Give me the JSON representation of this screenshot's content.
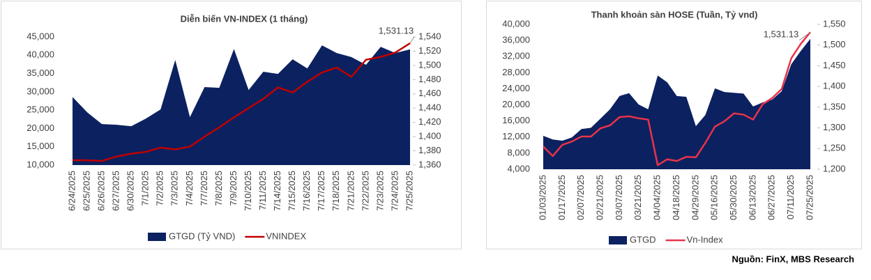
{
  "chart_data": [
    {
      "type": "combo",
      "title": "Diễn biến VN-INDEX (1 tháng)",
      "categories": [
        "6/24/2025",
        "6/25/2025",
        "6/26/2025",
        "6/27/2025",
        "6/30/2025",
        "7/1/2025",
        "7/2/2025",
        "7/3/2025",
        "7/4/2025",
        "7/7/2025",
        "7/8/2025",
        "7/9/2025",
        "7/10/2025",
        "7/11/2025",
        "7/14/2025",
        "7/15/2025",
        "7/16/2025",
        "7/17/2025",
        "7/18/2025",
        "7/21/2025",
        "7/22/2025",
        "7/23/2025",
        "7/24/2025",
        "7/25/2025"
      ],
      "series": [
        {
          "name": "GTGD (Tỷ VND)",
          "type": "area",
          "color": "#0c2160",
          "values": [
            28600,
            24400,
            21200,
            21000,
            20600,
            22700,
            25200,
            38700,
            23100,
            31300,
            31100,
            41700,
            30500,
            35500,
            34900,
            38900,
            36400,
            42700,
            40600,
            39500,
            37400,
            42300,
            40600,
            41600
          ]
        },
        {
          "name": "VNINDEX",
          "type": "line",
          "axis": "y2",
          "color": "#c00000",
          "values": [
            1366.8,
            1366.7,
            1365.8,
            1372,
            1376,
            1378.6,
            1384.5,
            1382,
            1386,
            1400,
            1413,
            1427,
            1440,
            1453,
            1469,
            1462,
            1477,
            1490,
            1497,
            1484,
            1508,
            1512,
            1518,
            1531.13
          ]
        }
      ],
      "annotation": "1,531.13",
      "ylim": [
        10000,
        45000
      ],
      "yticks": [
        {
          "value": 10000,
          "label": "10,000"
        },
        {
          "value": 15000,
          "label": "15,000"
        },
        {
          "value": 20000,
          "label": "20,000"
        },
        {
          "value": 25000,
          "label": "25,000"
        },
        {
          "value": 30000,
          "label": "30,000"
        },
        {
          "value": 35000,
          "label": "35,000"
        },
        {
          "value": 40000,
          "label": "40,000"
        },
        {
          "value": 45000,
          "label": "45,000"
        }
      ],
      "y2lim": [
        1360,
        1540
      ],
      "y2ticks": [
        {
          "value": 1360,
          "label": "1,360"
        },
        {
          "value": 1380,
          "label": "1,380"
        },
        {
          "value": 1400,
          "label": "1,400"
        },
        {
          "value": 1420,
          "label": "1,420"
        },
        {
          "value": 1440,
          "label": "1,440"
        },
        {
          "value": 1460,
          "label": "1,460"
        },
        {
          "value": 1480,
          "label": "1,480"
        },
        {
          "value": 1500,
          "label": "1,500"
        },
        {
          "value": 1520,
          "label": "1,520"
        },
        {
          "value": 1540,
          "label": "1,540"
        }
      ],
      "legend": "bottom"
    },
    {
      "type": "combo",
      "title": "Thanh khoản sàn HOSE (Tuần, Tỷ vnd)",
      "categories": [
        "01/03/2025",
        null,
        "01/17/2025",
        null,
        "02/07/2025",
        null,
        "02/21/2025",
        null,
        "03/07/2025",
        null,
        "03/21/2025",
        null,
        "04/04/2025",
        null,
        "04/18/2025",
        null,
        "04/29/2025",
        null,
        "05/16/2025",
        null,
        "05/30/2025",
        null,
        "06/13/2025",
        null,
        "06/27/2025",
        null,
        "07/11/2025",
        null,
        "07/25/2025"
      ],
      "series": [
        {
          "name": "GTGD",
          "type": "area",
          "color": "#0c2160",
          "values": [
            12300,
            11400,
            11100,
            11900,
            14000,
            14300,
            16600,
            18900,
            22200,
            22900,
            20100,
            18900,
            27300,
            25600,
            22200,
            22000,
            14700,
            17500,
            24100,
            23200,
            23000,
            22800,
            19600,
            20600,
            21300,
            23400,
            30100,
            33400,
            36400
          ]
        },
        {
          "name": "Vn-Index",
          "type": "line",
          "axis": "y2",
          "color": "#e8334a",
          "values": [
            1255,
            1232,
            1259,
            1267,
            1279,
            1279,
            1299,
            1306,
            1326,
            1328,
            1323,
            1320,
            1210,
            1224,
            1220,
            1230,
            1229,
            1264,
            1303,
            1316,
            1335,
            1332,
            1320,
            1357,
            1372,
            1394,
            1468,
            1503,
            1531.13
          ]
        }
      ],
      "annotation": "1,531.13",
      "ylim": [
        4000,
        40000
      ],
      "yticks": [
        {
          "value": 4000,
          "label": "4,000"
        },
        {
          "value": 8000,
          "label": "8,000"
        },
        {
          "value": 12000,
          "label": "12,000"
        },
        {
          "value": 16000,
          "label": "16,000"
        },
        {
          "value": 20000,
          "label": "20,000"
        },
        {
          "value": 24000,
          "label": "24,000"
        },
        {
          "value": 28000,
          "label": "28,000"
        },
        {
          "value": 32000,
          "label": "32,000"
        },
        {
          "value": 36000,
          "label": "36,000"
        },
        {
          "value": 40000,
          "label": "40,000"
        }
      ],
      "y2lim": [
        1200,
        1550
      ],
      "y2ticks": [
        {
          "value": 1200,
          "label": "1,200"
        },
        {
          "value": 1250,
          "label": "1,250"
        },
        {
          "value": 1300,
          "label": "1,300"
        },
        {
          "value": 1350,
          "label": "1,350"
        },
        {
          "value": 1400,
          "label": "1,400"
        },
        {
          "value": 1450,
          "label": "1,450"
        },
        {
          "value": 1500,
          "label": "1,500"
        },
        {
          "value": 1550,
          "label": "1,550"
        }
      ],
      "legend": "bottom"
    }
  ],
  "source": "Nguồn: FinX, MBS Research"
}
